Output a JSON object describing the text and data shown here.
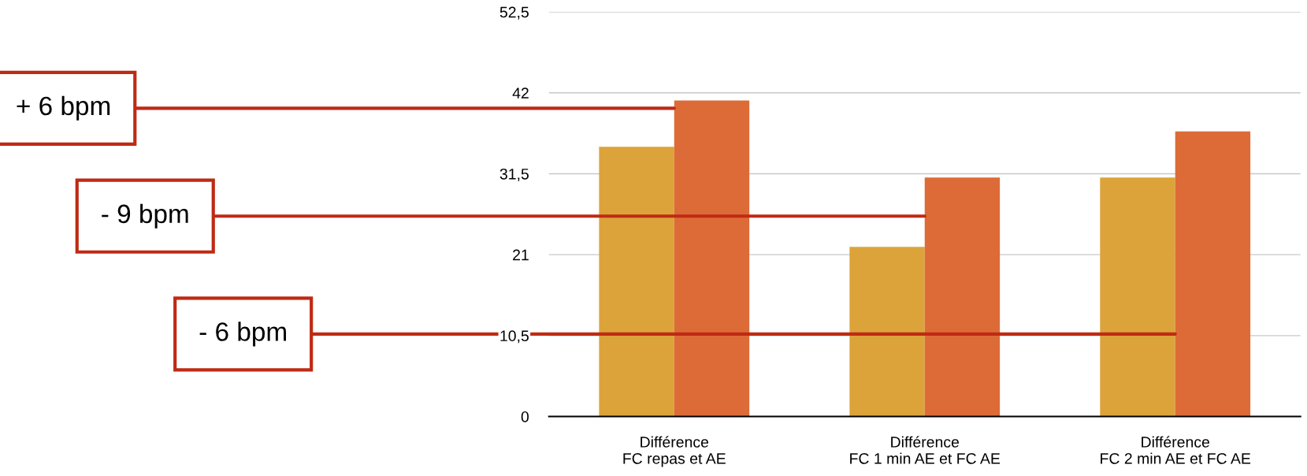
{
  "chart_data": {
    "type": "bar",
    "categories": [
      "Différence\nFC repas et AE",
      "Différence\nFC 1 min AE et FC AE",
      "Différence\nFC 2 min AE et FC AE"
    ],
    "series": [
      {
        "color": "#dca33a",
        "values": [
          35,
          22,
          31
        ]
      },
      {
        "color": "#dd6b38",
        "values": [
          41,
          31,
          37
        ]
      }
    ],
    "ylim": [
      0,
      52.5
    ],
    "yticks": [
      0,
      {
        "value": 10.5,
        "label": "10,5"
      },
      21,
      {
        "value": 31.5,
        "label": "31,5"
      },
      42,
      {
        "value": 52.5,
        "label": "52,5"
      }
    ],
    "grid": "y",
    "legend": false,
    "annotations": [
      {
        "text": "+ 6 bpm",
        "x": "Différence\nFC repas et AE",
        "y": 40
      },
      {
        "text": "- 9 bpm",
        "x": "Différence\nFC 1 min AE et FC AE",
        "y": 26
      },
      {
        "text": "- 6 bpm",
        "x": "Différence\nFC 2 min AE et FC AE",
        "y": 10.7
      }
    ]
  }
}
